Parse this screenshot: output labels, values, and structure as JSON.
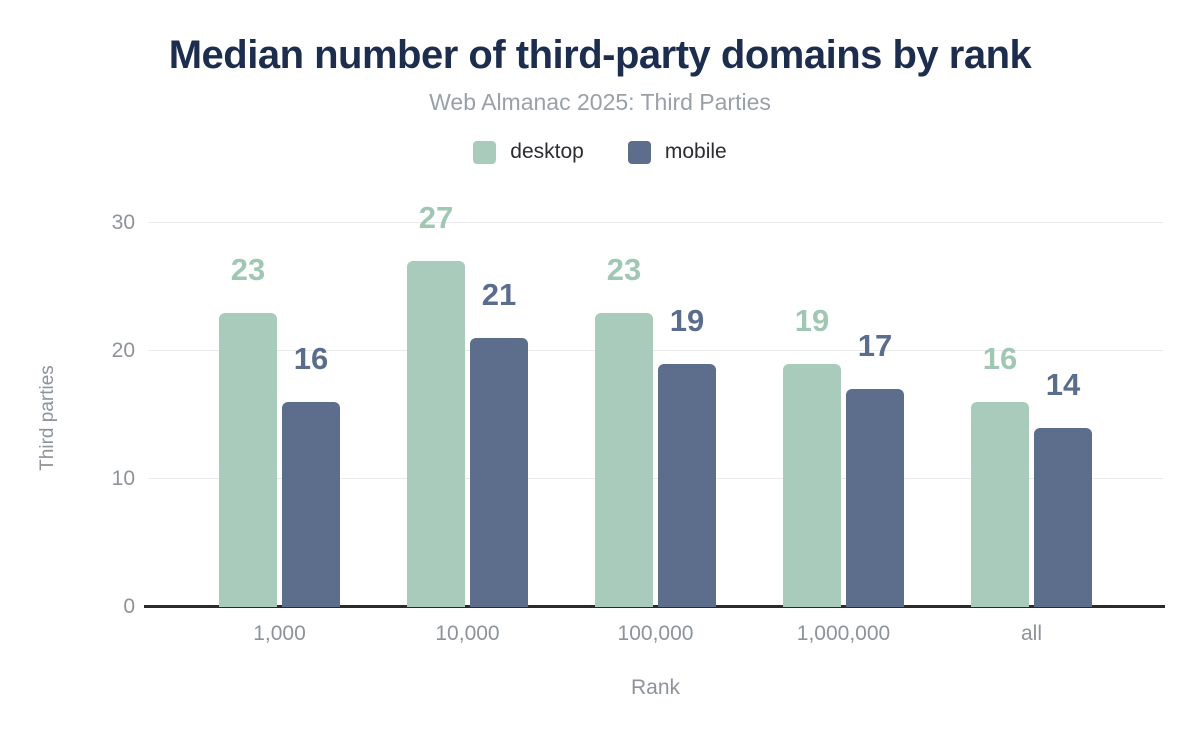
{
  "chart_data": {
    "type": "bar",
    "title": "Median number of third-party domains by rank",
    "subtitle": "Web Almanac 2025: Third Parties",
    "categories": [
      "1,000",
      "10,000",
      "100,000",
      "1,000,000",
      "all"
    ],
    "series": [
      {
        "name": "desktop",
        "color": "#a9cbbb",
        "label_color": "#a0c7b4",
        "values": [
          23,
          27,
          23,
          19,
          16
        ]
      },
      {
        "name": "mobile",
        "color": "#5c6e8c",
        "label_color": "#5b6d8d",
        "values": [
          16,
          21,
          19,
          17,
          14
        ]
      }
    ],
    "xlabel": "Rank",
    "ylabel": "Third parties",
    "ylim": [
      0,
      30
    ],
    "yticks": [
      0,
      10,
      20,
      30
    ],
    "grid": true,
    "legend_position": "top",
    "data_labels": true
  },
  "colors": {
    "title": "#1d2d4e",
    "subtitle": "#9aa0a7",
    "axis_text": "#8d9399",
    "legend_text": "#2b2d30",
    "gridline": "#e9eaeb",
    "axis_line": "#2b2b2b",
    "background": "#ffffff"
  }
}
